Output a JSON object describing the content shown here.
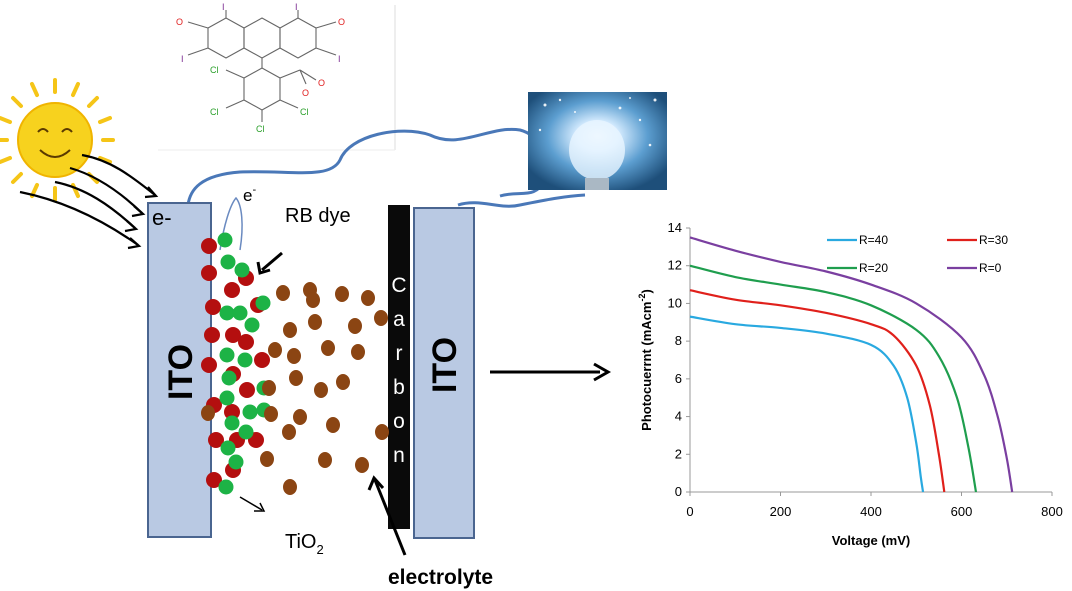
{
  "labels": {
    "ito_left": "ITO",
    "ito_right": "ITO",
    "e_minus": "e-",
    "e_top": "e",
    "e_top_sup": "-",
    "rb_dye": "RB dye",
    "carbon": "Carbon",
    "tio2": "TiO",
    "tio2_sub": "2",
    "electrolyte": "electrolyte"
  },
  "molecule": {
    "atoms": [
      "O",
      "I",
      "I",
      "O",
      "I",
      "I",
      "O",
      "O",
      "Cl",
      "Cl",
      "Cl",
      "Cl"
    ]
  },
  "colors": {
    "ito": "#b9c9e3",
    "wire": "#4a78b8",
    "dye_red": "#b40f0f",
    "tio2_green": "#1db346",
    "electrolyte_brown": "#8b4513",
    "sun": "#f5c518"
  },
  "chart_data": {
    "type": "line",
    "xlabel": "Voltage (mV)",
    "ylabel": "Photocuerrnt (mAcm",
    "ylabel_sup": "-2",
    "ylabel_close": ")",
    "xlim": [
      0,
      800
    ],
    "ylim": [
      0,
      14
    ],
    "xticks": [
      0,
      200,
      400,
      600,
      800
    ],
    "yticks": [
      0,
      2,
      4,
      6,
      8,
      10,
      12,
      14
    ],
    "grid": false,
    "legend_position": "top-right",
    "series": [
      {
        "name": "R=40",
        "color": "#29a9e0",
        "x": [
          0,
          100,
          200,
          300,
          400,
          450,
          480,
          500,
          510,
          515
        ],
        "y": [
          9.3,
          8.9,
          8.7,
          8.4,
          7.8,
          6.7,
          5.0,
          2.6,
          0.8,
          0
        ]
      },
      {
        "name": "R=30",
        "color": "#e0201b",
        "x": [
          0,
          100,
          200,
          300,
          400,
          450,
          500,
          530,
          550,
          562
        ],
        "y": [
          10.7,
          10.2,
          9.9,
          9.5,
          8.9,
          8.3,
          6.7,
          4.6,
          2.0,
          0
        ]
      },
      {
        "name": "R=20",
        "color": "#1f9e4e",
        "x": [
          0,
          100,
          200,
          300,
          400,
          500,
          550,
          590,
          615,
          632
        ],
        "y": [
          12.0,
          11.4,
          11.0,
          10.6,
          9.9,
          8.6,
          7.2,
          5.0,
          2.4,
          0
        ]
      },
      {
        "name": "R=0",
        "color": "#7a3fa0",
        "x": [
          0,
          100,
          200,
          300,
          400,
          500,
          600,
          650,
          680,
          700,
          712
        ],
        "y": [
          13.5,
          12.8,
          12.2,
          11.7,
          11.0,
          10.0,
          8.2,
          6.2,
          4.0,
          1.8,
          0
        ]
      }
    ]
  }
}
